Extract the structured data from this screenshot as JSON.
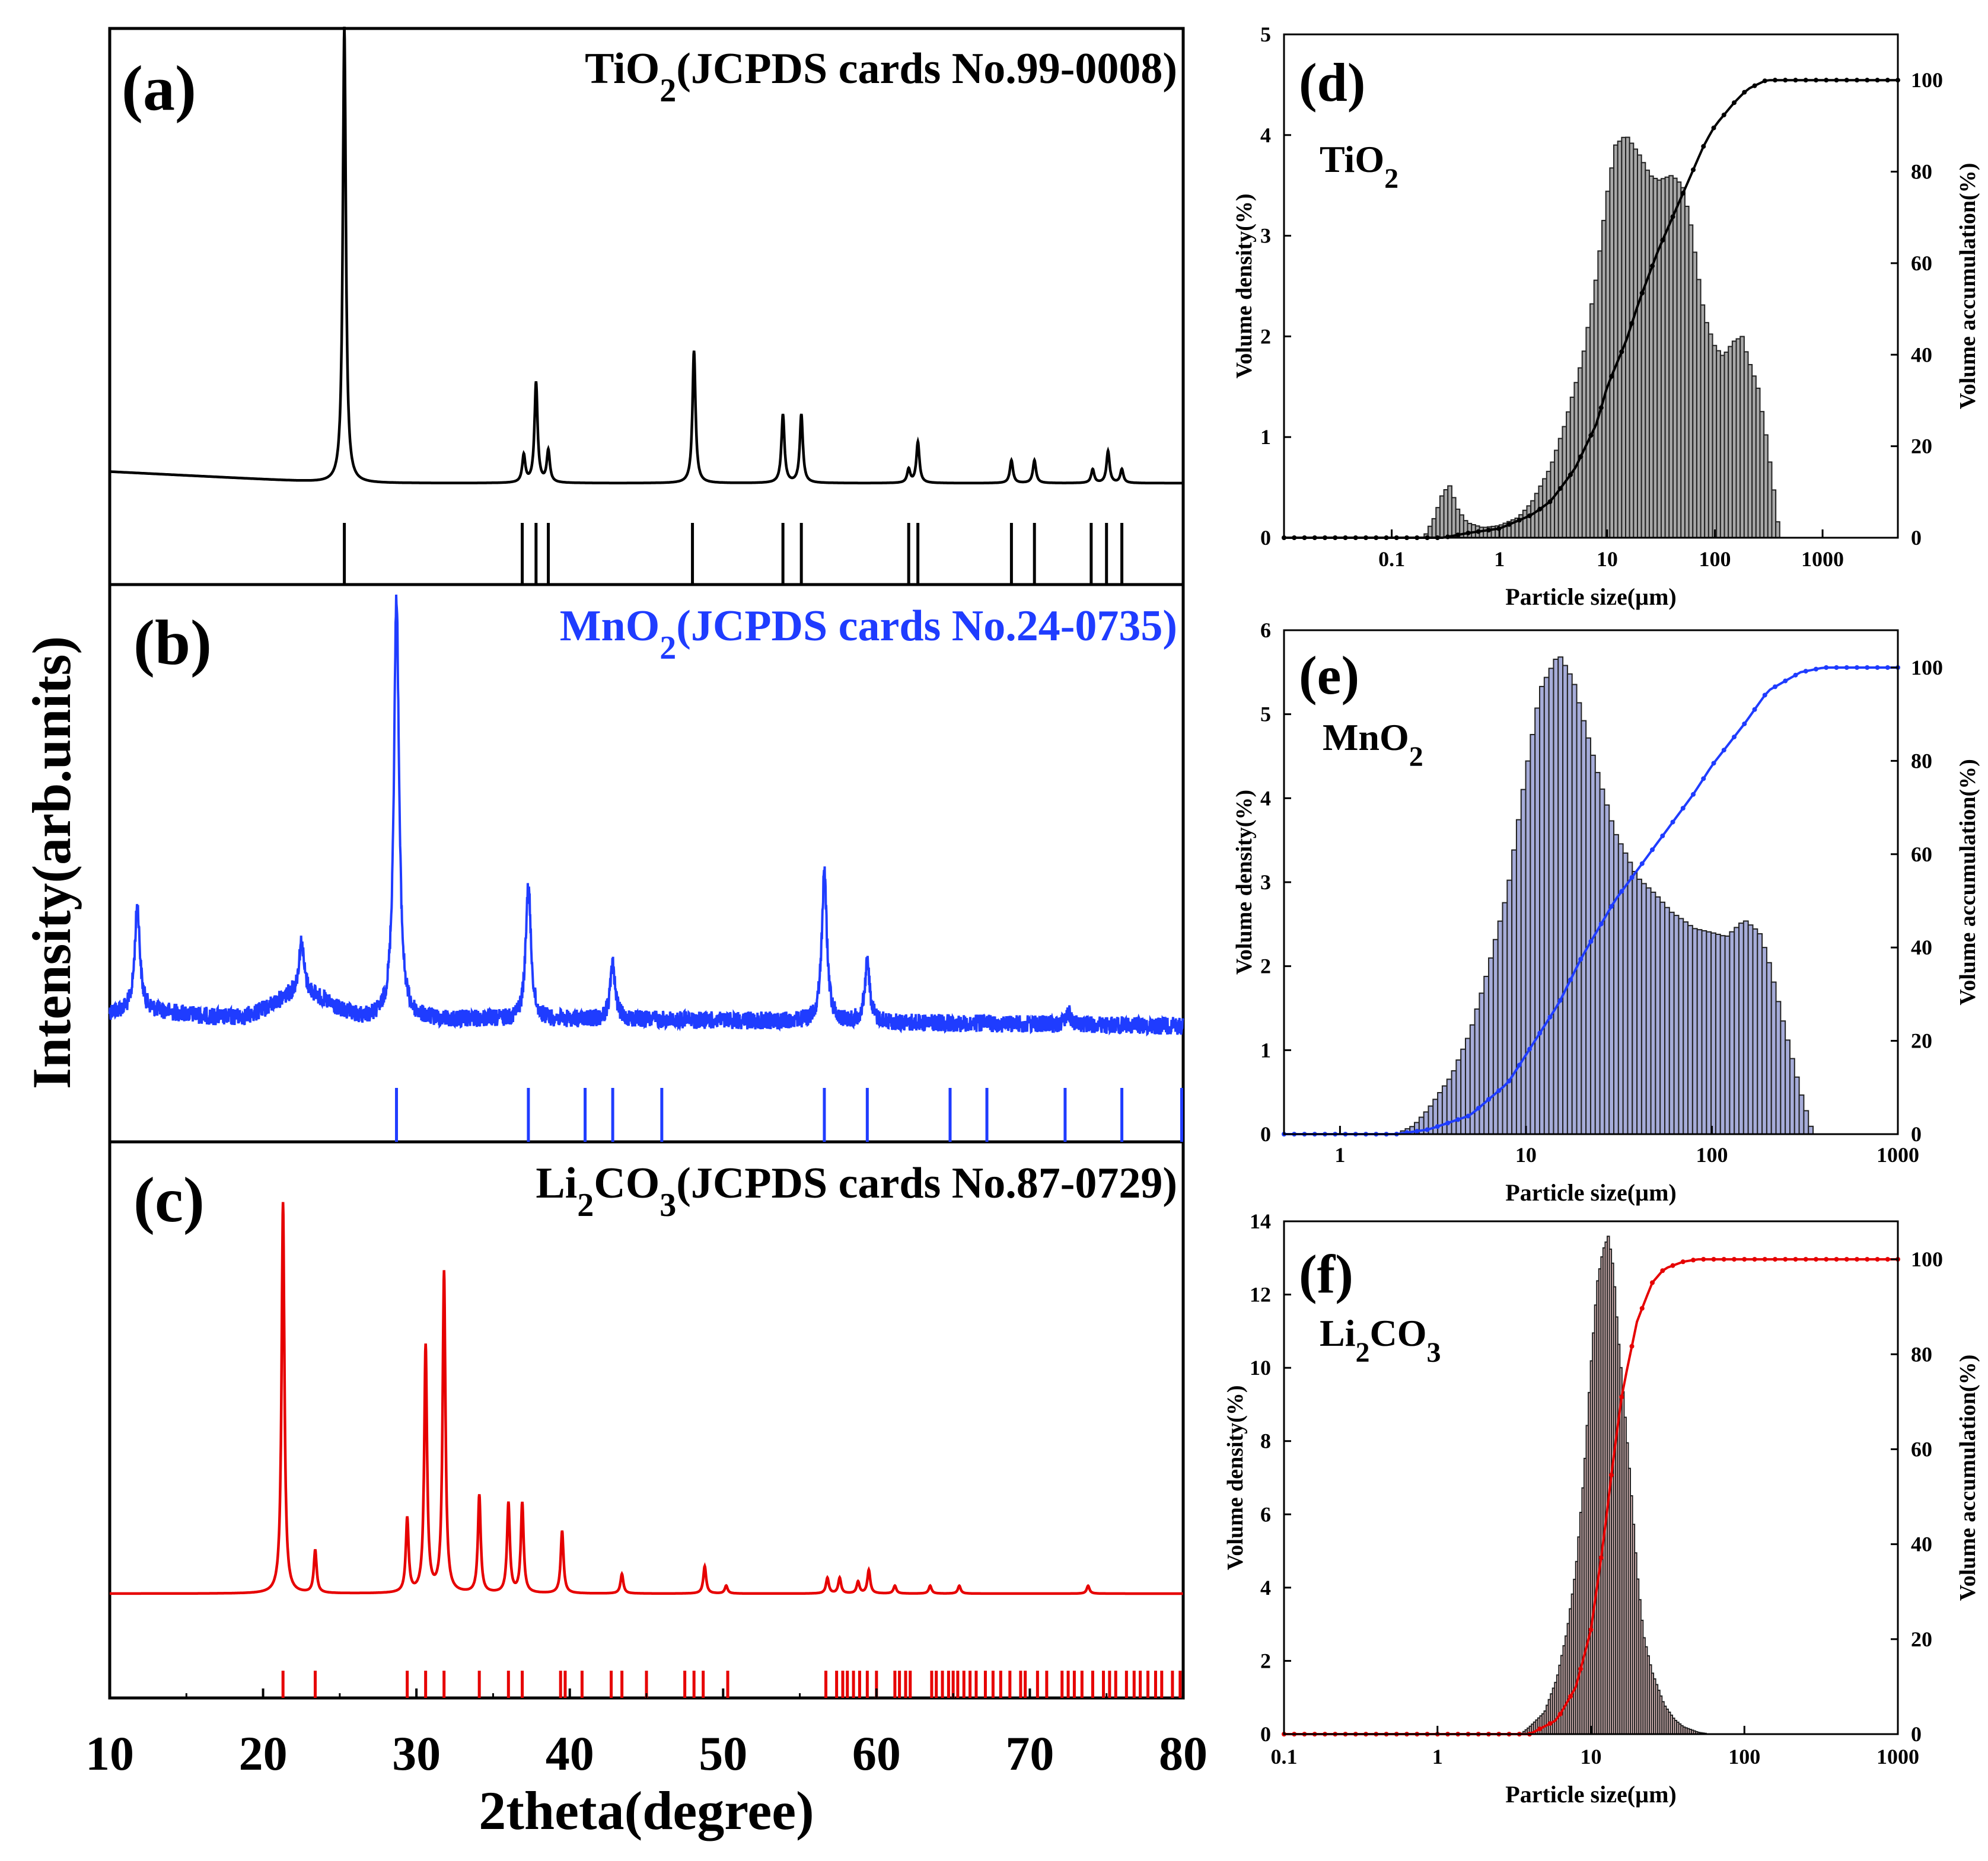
{
  "figure": {
    "xrd_ylabel": "Intensity(arb.units)",
    "xrd_xlabel": "2theta(degree)",
    "xrd_xticks": [
      "10",
      "20",
      "30",
      "40",
      "50",
      "60",
      "70",
      "80"
    ]
  },
  "colors": {
    "tio2": "#000000",
    "mno2": "#1f3cff",
    "li2co3": "#e60000",
    "mno2_bar_fill": "#a6acd9",
    "li2co3_bar_fill": "#e8c4c4",
    "tio2_bar_fill": "#a8a8a8"
  },
  "chart_data": [
    {
      "panel": "(a)",
      "type": "line",
      "legend": {
        "pre": "TiO",
        "sub": "2",
        "post": "(JCPDS cards No.99-0008)"
      },
      "xlim": [
        10,
        80
      ],
      "peaks": [
        [
          25.3,
          100
        ],
        [
          37.0,
          6
        ],
        [
          37.8,
          22
        ],
        [
          38.6,
          7
        ],
        [
          48.1,
          29
        ],
        [
          53.9,
          15
        ],
        [
          55.1,
          15
        ],
        [
          62.1,
          3
        ],
        [
          62.7,
          9
        ],
        [
          68.8,
          5
        ],
        [
          70.3,
          5
        ],
        [
          74.1,
          3
        ],
        [
          75.1,
          7
        ],
        [
          76.0,
          3
        ]
      ],
      "reference_lines": [
        25.3,
        36.9,
        37.8,
        38.6,
        48.0,
        53.9,
        55.1,
        62.1,
        62.7,
        68.8,
        70.3,
        74.0,
        75.0,
        76.0
      ]
    },
    {
      "panel": "(b)",
      "type": "line",
      "legend": {
        "pre": "MnO",
        "sub": "2",
        "post": "(JCPDS cards No.24-0735)"
      },
      "xlim": [
        10,
        80
      ],
      "peaks": [
        [
          11.8,
          25
        ],
        [
          22.5,
          12
        ],
        [
          28.7,
          100
        ],
        [
          37.3,
          32
        ],
        [
          42.8,
          13
        ],
        [
          56.6,
          35
        ],
        [
          59.4,
          14
        ],
        [
          72.5,
          3
        ]
      ],
      "reference_lines": [
        28.7,
        37.3,
        41.0,
        42.8,
        46.0,
        56.6,
        59.4,
        64.8,
        67.2,
        72.3,
        76.0,
        79.9
      ]
    },
    {
      "panel": "(c)",
      "type": "line",
      "legend": {
        "pre": "Li",
        "sub": "2",
        "mid": "CO",
        "sub2": "3",
        "post": "(JCPDS cards No.87-0729)"
      },
      "xlim": [
        10,
        80
      ],
      "peaks": [
        [
          21.3,
          100
        ],
        [
          23.4,
          11
        ],
        [
          29.4,
          19
        ],
        [
          30.6,
          63
        ],
        [
          31.8,
          82
        ],
        [
          34.1,
          25
        ],
        [
          36.0,
          23
        ],
        [
          36.9,
          23
        ],
        [
          39.5,
          16
        ],
        [
          43.4,
          5
        ],
        [
          48.8,
          7
        ],
        [
          50.2,
          2
        ],
        [
          56.8,
          4
        ],
        [
          57.6,
          4
        ],
        [
          58.8,
          3
        ],
        [
          59.5,
          6
        ],
        [
          61.2,
          2
        ],
        [
          63.5,
          2
        ],
        [
          65.4,
          2
        ],
        [
          73.8,
          2
        ]
      ],
      "reference_lines": [
        21.3,
        23.4,
        29.4,
        30.6,
        31.8,
        34.1,
        36.0,
        36.9,
        39.4,
        39.7,
        40.8,
        42.7,
        43.4,
        45.0,
        47.5,
        48.1,
        48.7,
        50.3,
        56.7,
        57.4,
        57.8,
        58.1,
        58.5,
        58.9,
        59.4,
        60.0,
        61.2,
        61.5,
        61.9,
        62.2,
        63.6,
        63.9,
        64.3,
        64.7,
        65.0,
        65.3,
        65.7,
        66.1,
        66.5,
        67.1,
        67.6,
        68.1,
        68.7,
        69.4,
        69.7,
        70.5,
        71.1,
        72.1,
        72.5,
        72.9,
        73.4,
        74.1,
        74.8,
        75.2,
        75.6,
        76.3,
        76.8,
        77.2,
        77.7,
        78.2,
        78.6,
        79.3,
        79.8
      ]
    },
    {
      "panel": "(d)",
      "type": "bar",
      "label": {
        "pre": "TiO",
        "sub": "2"
      },
      "xlabel": "Particle size(µm)",
      "ylabel": "Volume density(%)",
      "y2label": "Volume accumulation(%)",
      "xscale": "log",
      "xlim": [
        0.01,
        5000
      ],
      "ylim": [
        0,
        5
      ],
      "y2lim": [
        0,
        110
      ],
      "xticks": [
        "0.1",
        "1",
        "10",
        "100",
        "1000"
      ],
      "yticks": [
        "0",
        "1",
        "2",
        "3",
        "4",
        "5"
      ],
      "y2ticks": [
        "0",
        "20",
        "40",
        "60",
        "80",
        "100"
      ],
      "distribution": {
        "x": [
          0.01,
          0.2,
          0.25,
          0.3,
          0.35,
          0.4,
          0.5,
          0.7,
          1,
          1.5,
          2,
          3,
          4,
          6,
          8,
          10,
          12,
          15,
          20,
          25,
          30,
          40,
          50,
          60,
          70,
          80,
          100,
          120,
          150,
          180,
          200,
          250,
          300,
          350,
          400
        ],
        "y": [
          0,
          0,
          0.2,
          0.45,
          0.52,
          0.3,
          0.15,
          0.1,
          0.12,
          0.2,
          0.35,
          0.7,
          1.1,
          1.8,
          2.6,
          3.4,
          3.9,
          4.0,
          3.8,
          3.6,
          3.55,
          3.6,
          3.5,
          3.1,
          2.6,
          2.2,
          1.9,
          1.8,
          1.95,
          2.0,
          1.8,
          1.5,
          1.0,
          0.5,
          0
        ]
      },
      "cumulative": {
        "x": [
          0.01,
          0.3,
          0.5,
          1,
          2,
          3,
          5,
          8,
          10,
          15,
          20,
          30,
          50,
          80,
          100,
          150,
          200,
          300,
          350,
          5000
        ],
        "y": [
          0,
          0,
          1,
          2,
          5,
          8,
          15,
          25,
          33,
          43,
          52,
          63,
          75,
          86,
          90,
          95,
          98,
          100,
          100,
          100
        ]
      }
    },
    {
      "panel": "(e)",
      "type": "bar",
      "label": {
        "pre": "MnO",
        "sub": "2"
      },
      "xlabel": "Particle size(µm)",
      "ylabel": "Volume density(%)",
      "y2label": "Volume accumulation(%)",
      "xscale": "log",
      "xlim": [
        0.5,
        1000
      ],
      "ylim": [
        0,
        6
      ],
      "y2lim": [
        0,
        108
      ],
      "xticks": [
        "1",
        "10",
        "100",
        "1000"
      ],
      "yticks": [
        "0",
        "1",
        "2",
        "3",
        "4",
        "5",
        "6"
      ],
      "y2ticks": [
        "0",
        "20",
        "40",
        "60",
        "80",
        "100"
      ],
      "distribution": {
        "x": [
          0.5,
          2,
          2.5,
          3,
          4,
          5,
          6,
          8,
          10,
          12,
          15,
          18,
          20,
          25,
          30,
          40,
          50,
          60,
          70,
          80,
          100,
          120,
          150,
          180,
          200,
          250,
          300,
          350
        ],
        "y": [
          0,
          0,
          0.1,
          0.3,
          0.7,
          1.2,
          1.8,
          2.9,
          4.3,
          5.3,
          5.72,
          5.4,
          5.0,
          4.2,
          3.6,
          3.05,
          2.85,
          2.65,
          2.55,
          2.45,
          2.4,
          2.35,
          2.55,
          2.4,
          2.1,
          1.2,
          0.5,
          0
        ]
      },
      "cumulative": {
        "x": [
          0.5,
          2,
          3,
          5,
          8,
          10,
          15,
          20,
          30,
          50,
          80,
          100,
          150,
          200,
          300,
          400,
          1000
        ],
        "y": [
          0,
          0,
          1,
          4,
          11,
          17,
          28,
          38,
          50,
          62,
          73,
          79,
          88,
          95,
          99,
          100,
          100
        ]
      }
    },
    {
      "panel": "(f)",
      "type": "bar",
      "label": {
        "pre": "Li",
        "sub": "2",
        "mid": "CO",
        "sub2": "3"
      },
      "xlabel": "Particle size(µm)",
      "ylabel": "Volume density(%)",
      "y2label": "Volume accumulation(%)",
      "xscale": "log",
      "xlim": [
        0.1,
        1000
      ],
      "ylim": [
        0,
        14
      ],
      "y2lim": [
        0,
        108
      ],
      "xticks": [
        "0.1",
        "1",
        "10",
        "100",
        "1000"
      ],
      "yticks": [
        "0",
        "2",
        "4",
        "6",
        "8",
        "10",
        "12",
        "14"
      ],
      "y2ticks": [
        "0",
        "20",
        "40",
        "60",
        "80",
        "100"
      ],
      "distribution": {
        "x": [
          0.1,
          3.5,
          4,
          5,
          6,
          7,
          8,
          9,
          10,
          11,
          12,
          13,
          14,
          15,
          16,
          18,
          20,
          22,
          25,
          30,
          35,
          40,
          50,
          60
        ],
        "y": [
          0,
          0,
          0.2,
          0.6,
          1.5,
          2.8,
          4.5,
          7.0,
          10.0,
          12.3,
          13.2,
          13.6,
          12.7,
          10.9,
          9.6,
          7.0,
          4.4,
          2.7,
          1.7,
          0.8,
          0.4,
          0.2,
          0.05,
          0
        ]
      },
      "cumulative": {
        "x": [
          0.1,
          4,
          6,
          8,
          10,
          12,
          14,
          16,
          20,
          25,
          30,
          40,
          50,
          100,
          1000
        ],
        "y": [
          0,
          0,
          3,
          10,
          22,
          40,
          58,
          72,
          87,
          95,
          98,
          99.5,
          100,
          100,
          100
        ]
      }
    }
  ]
}
